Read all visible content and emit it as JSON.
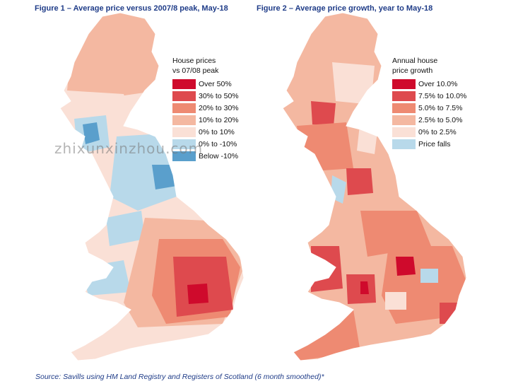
{
  "figures": [
    {
      "title": "Figure 1 – Average price versus 2007/8 peak, May-18",
      "legend_title_line1": "House prices",
      "legend_title_line2": "vs 07/08 peak",
      "legend": [
        {
          "label": "Over 50%",
          "color": "#cf0a2c"
        },
        {
          "label": "30% to 50%",
          "color": "#de4a4e"
        },
        {
          "label": "20% to 30%",
          "color": "#ee8a72"
        },
        {
          "label": "10% to 20%",
          "color": "#f4b8a1"
        },
        {
          "label": "0% to 10%",
          "color": "#fae0d6"
        },
        {
          "label": "0% to -10%",
          "color": "#b8d9ea"
        },
        {
          "label": "Below -10%",
          "color": "#5a9fcc"
        }
      ]
    },
    {
      "title": "Figure 2 – Average price growth, year to May-18",
      "legend_title_line1": "Annual house",
      "legend_title_line2": "price growth",
      "legend": [
        {
          "label": "Over 10.0%",
          "color": "#cf0a2c"
        },
        {
          "label": "7.5% to 10.0%",
          "color": "#de4a4e"
        },
        {
          "label": "5.0% to 7.5%",
          "color": "#ee8a72"
        },
        {
          "label": "2.5% to 5.0%",
          "color": "#f4b8a1"
        },
        {
          "label": "0% to 2.5%",
          "color": "#fae0d6"
        },
        {
          "label": "Price falls",
          "color": "#b8d9ea"
        }
      ]
    }
  ],
  "source": "Source: Savills using HM Land Registry and Registers of Scotland (6 month smoothed)*",
  "watermark": "zhixunxinzhou.com"
}
